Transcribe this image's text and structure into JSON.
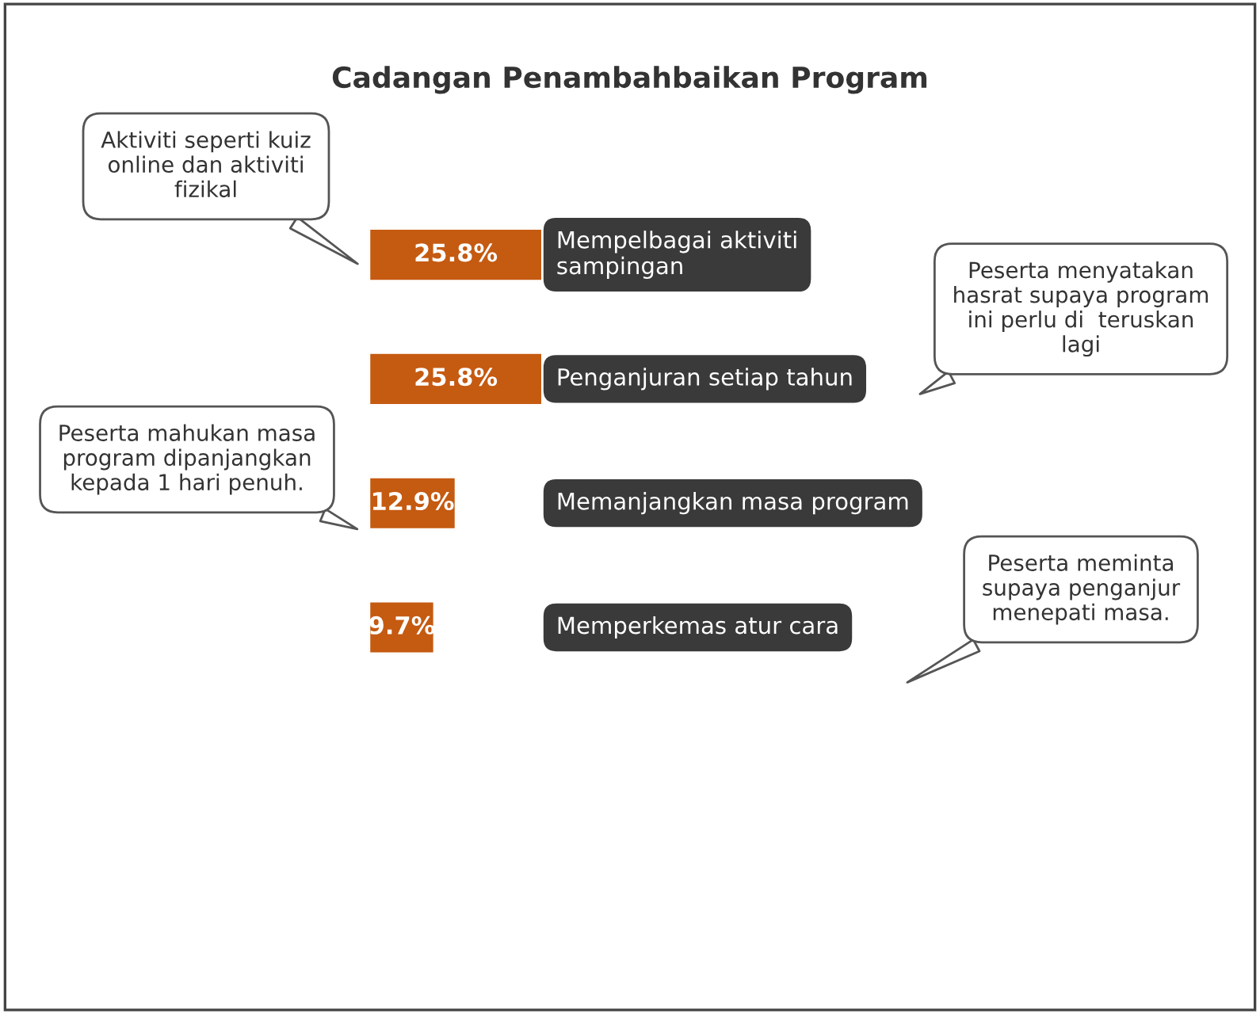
{
  "chart_data": {
    "type": "bar",
    "orientation": "horizontal",
    "title": "Cadangan Penambahbaikan Program",
    "categories": [
      "Mempelbagai aktiviti\nsampingan",
      "Penganjuran setiap tahun",
      "Memanjangkan masa program",
      "Memperkemas atur cara"
    ],
    "values": [
      25.8,
      25.8,
      12.9,
      9.7
    ],
    "value_labels": [
      "25.8%",
      "25.8%",
      "12.9%",
      "9.7%"
    ],
    "color": "#c55a11",
    "tick_labels": false,
    "annotations": [
      "Aktiviti seperti kuiz\nonline dan aktiviti\nfizikal",
      "Peserta menyatakan\nhasrat supaya program\nini perlu di  teruskan\nlagi",
      "Peserta mahukan masa\nprogram dipanjangkan\nkepada 1 hari penuh.",
      "Peserta meminta\nsupaya penganjur\nmenepati masa."
    ]
  }
}
